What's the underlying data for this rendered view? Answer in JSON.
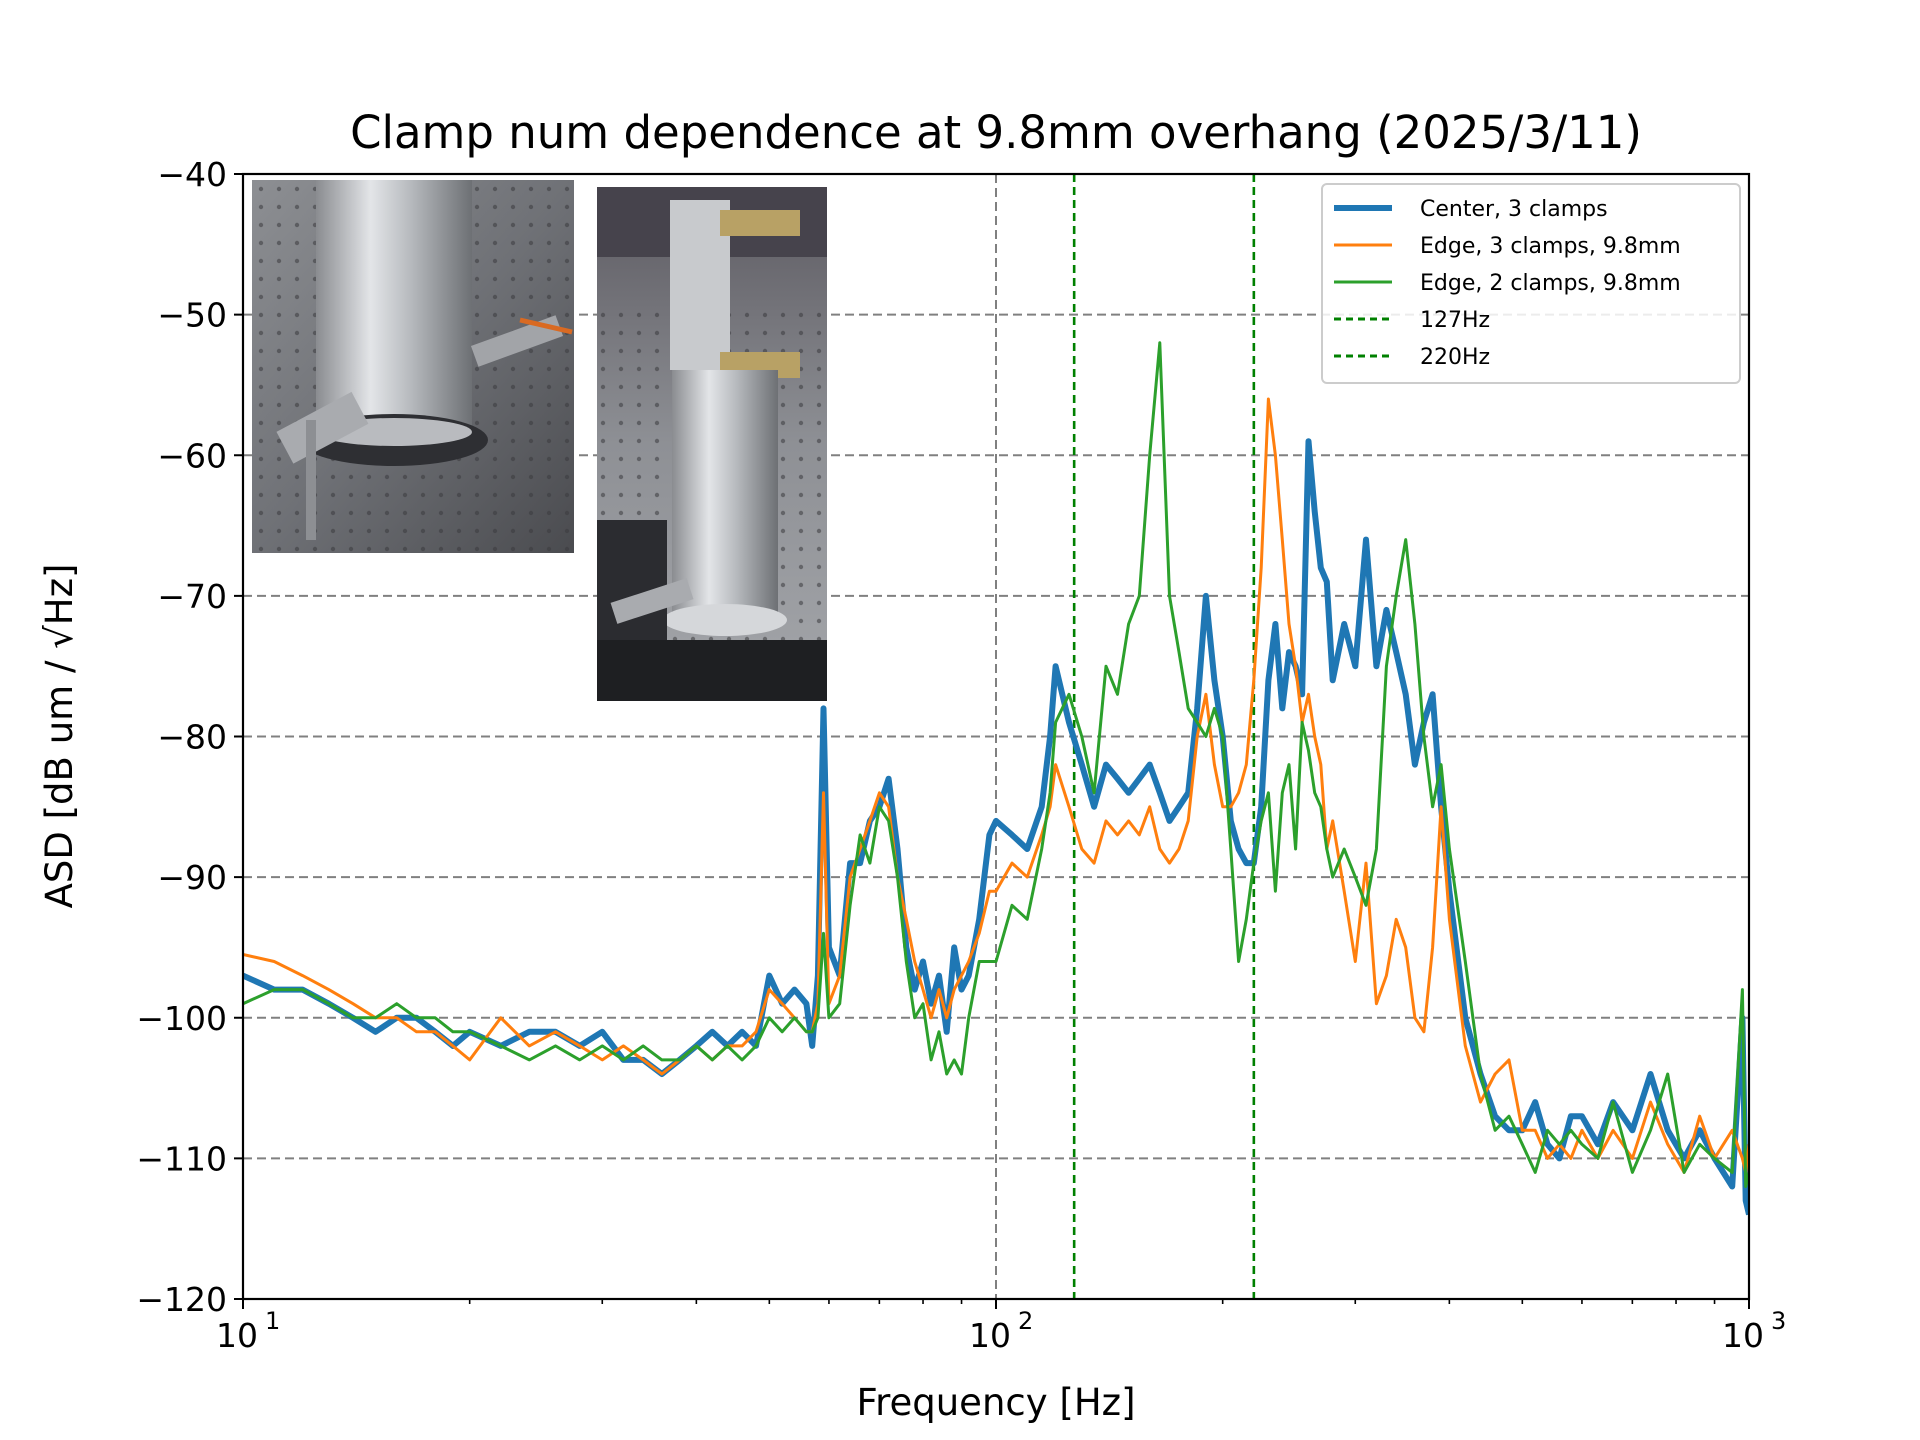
{
  "chart_data": {
    "type": "line",
    "title": "Clamp num dependence at 9.8mm overhang (2025/3/11)",
    "xlabel": "Frequency [Hz]",
    "ylabel": "ASD [dB um / √Hz]",
    "xscale": "log",
    "xlim": [
      10,
      1000
    ],
    "ylim": [
      -120,
      -40
    ],
    "grid": true,
    "legend_position": "top-right",
    "x_ticks": [
      {
        "value": 10,
        "base": "10",
        "exp": "1"
      },
      {
        "value": 100,
        "base": "10",
        "exp": "2"
      },
      {
        "value": 1000,
        "base": "10",
        "exp": "3"
      }
    ],
    "y_ticks": [
      {
        "value": -40,
        "label": "−40"
      },
      {
        "value": -50,
        "label": "−50"
      },
      {
        "value": -60,
        "label": "−60"
      },
      {
        "value": -70,
        "label": "−70"
      },
      {
        "value": -80,
        "label": "−80"
      },
      {
        "value": -90,
        "label": "−90"
      },
      {
        "value": -100,
        "label": "−100"
      },
      {
        "value": -110,
        "label": "−110"
      },
      {
        "value": -120,
        "label": "−120"
      }
    ],
    "series": [
      {
        "name": "Center, 3 clamps",
        "color": "#1f77b4",
        "x": [
          10,
          11,
          12,
          13,
          14,
          15,
          16,
          17,
          18,
          19,
          20,
          22,
          24,
          26,
          28,
          30,
          32,
          34,
          36,
          38,
          40,
          42,
          44,
          46,
          48,
          50,
          52,
          54,
          56,
          57,
          58,
          59,
          60,
          62,
          64,
          66,
          68,
          70,
          72,
          74,
          76,
          78,
          80,
          82,
          84,
          86,
          88,
          90,
          92,
          95,
          98,
          100,
          105,
          110,
          115,
          118,
          120,
          125,
          130,
          135,
          140,
          145,
          150,
          155,
          160,
          165,
          170,
          175,
          180,
          185,
          190,
          195,
          200,
          205,
          210,
          215,
          220,
          225,
          230,
          235,
          240,
          245,
          250,
          255,
          260,
          265,
          270,
          275,
          280,
          290,
          300,
          310,
          320,
          330,
          340,
          350,
          360,
          370,
          380,
          390,
          400,
          420,
          440,
          460,
          480,
          500,
          520,
          540,
          560,
          580,
          600,
          630,
          660,
          700,
          740,
          780,
          820,
          860,
          900,
          950,
          980,
          990,
          1000
        ],
        "y": [
          -97,
          -98,
          -98,
          -99,
          -100,
          -101,
          -100,
          -100,
          -101,
          -102,
          -101,
          -102,
          -101,
          -101,
          -102,
          -101,
          -103,
          -103,
          -104,
          -103,
          -102,
          -101,
          -102,
          -101,
          -102,
          -97,
          -99,
          -98,
          -99,
          -102,
          -97,
          -78,
          -95,
          -97,
          -89,
          -89,
          -86,
          -85,
          -83,
          -88,
          -95,
          -98,
          -96,
          -99,
          -97,
          -101,
          -95,
          -98,
          -97,
          -93,
          -87,
          -86,
          -87,
          -88,
          -85,
          -80,
          -75,
          -79,
          -82,
          -85,
          -82,
          -83,
          -84,
          -83,
          -82,
          -84,
          -86,
          -85,
          -84,
          -78,
          -70,
          -76,
          -80,
          -86,
          -88,
          -89,
          -89,
          -85,
          -76,
          -72,
          -78,
          -74,
          -75,
          -77,
          -59,
          -64,
          -68,
          -69,
          -76,
          -72,
          -75,
          -66,
          -75,
          -71,
          -74,
          -77,
          -82,
          -79,
          -77,
          -85,
          -91,
          -100,
          -104,
          -107,
          -108,
          -108,
          -106,
          -109,
          -110,
          -107,
          -107,
          -109,
          -106,
          -108,
          -104,
          -108,
          -110,
          -108,
          -110,
          -112,
          -100,
          -113,
          -114
        ]
      },
      {
        "name": "Edge, 3 clamps, 9.8mm",
        "color": "#ff7f0e",
        "x": [
          10,
          11,
          12,
          13,
          14,
          15,
          16,
          17,
          18,
          19,
          20,
          22,
          24,
          26,
          28,
          30,
          32,
          34,
          36,
          38,
          40,
          42,
          44,
          46,
          48,
          50,
          52,
          54,
          56,
          57,
          58,
          59,
          60,
          62,
          64,
          66,
          68,
          70,
          72,
          74,
          76,
          78,
          80,
          82,
          84,
          86,
          88,
          90,
          92,
          95,
          98,
          100,
          105,
          110,
          115,
          118,
          120,
          125,
          130,
          135,
          140,
          145,
          150,
          155,
          160,
          165,
          170,
          175,
          180,
          185,
          190,
          195,
          200,
          205,
          210,
          215,
          220,
          225,
          230,
          235,
          240,
          245,
          250,
          255,
          260,
          265,
          270,
          275,
          280,
          290,
          300,
          310,
          320,
          330,
          340,
          350,
          360,
          370,
          380,
          390,
          400,
          420,
          440,
          460,
          480,
          500,
          520,
          540,
          560,
          580,
          600,
          630,
          660,
          700,
          740,
          780,
          820,
          860,
          900,
          950,
          980,
          990,
          1000
        ],
        "y": [
          -95.5,
          -96,
          -97,
          -98,
          -99,
          -100,
          -100,
          -101,
          -101,
          -102,
          -103,
          -100,
          -102,
          -101,
          -102,
          -103,
          -102,
          -103,
          -104,
          -103,
          -102,
          -103,
          -102,
          -102,
          -101,
          -98,
          -99,
          -100,
          -101,
          -101,
          -99,
          -84,
          -99,
          -97,
          -90,
          -88,
          -86,
          -84,
          -85,
          -90,
          -93,
          -96,
          -98,
          -100,
          -98,
          -100,
          -98,
          -97,
          -96,
          -94,
          -91,
          -91,
          -89,
          -90,
          -87,
          -85,
          -82,
          -85,
          -88,
          -89,
          -86,
          -87,
          -86,
          -87,
          -85,
          -88,
          -89,
          -88,
          -86,
          -80,
          -77,
          -82,
          -85,
          -85,
          -84,
          -82,
          -76,
          -68,
          -56,
          -60,
          -66,
          -72,
          -75,
          -79,
          -77,
          -80,
          -82,
          -88,
          -86,
          -91,
          -96,
          -89,
          -99,
          -97,
          -93,
          -95,
          -100,
          -101,
          -95,
          -85,
          -93,
          -102,
          -106,
          -104,
          -103,
          -108,
          -108,
          -110,
          -109,
          -110,
          -108,
          -110,
          -108,
          -110,
          -106,
          -109,
          -111,
          -107,
          -110,
          -108,
          -110,
          -111,
          -109
        ]
      },
      {
        "name": "Edge, 2 clamps, 9.8mm",
        "color": "#2ca02c",
        "x": [
          10,
          11,
          12,
          13,
          14,
          15,
          16,
          17,
          18,
          19,
          20,
          22,
          24,
          26,
          28,
          30,
          32,
          34,
          36,
          38,
          40,
          42,
          44,
          46,
          48,
          50,
          52,
          54,
          56,
          57,
          58,
          59,
          60,
          62,
          64,
          66,
          68,
          70,
          72,
          74,
          76,
          78,
          80,
          82,
          84,
          86,
          88,
          90,
          92,
          95,
          98,
          100,
          105,
          110,
          115,
          118,
          120,
          125,
          130,
          135,
          140,
          145,
          150,
          155,
          160,
          165,
          170,
          175,
          180,
          185,
          190,
          195,
          200,
          205,
          210,
          215,
          220,
          225,
          230,
          235,
          240,
          245,
          250,
          255,
          260,
          265,
          270,
          275,
          280,
          290,
          300,
          310,
          320,
          330,
          340,
          350,
          360,
          370,
          380,
          390,
          400,
          420,
          440,
          460,
          480,
          500,
          520,
          540,
          560,
          580,
          600,
          630,
          660,
          700,
          740,
          780,
          820,
          860,
          900,
          950,
          980,
          990,
          1000
        ],
        "y": [
          -99,
          -98,
          -98,
          -99,
          -100,
          -100,
          -99,
          -100,
          -100,
          -101,
          -101,
          -102,
          -103,
          -102,
          -103,
          -102,
          -103,
          -102,
          -103,
          -103,
          -102,
          -103,
          -102,
          -103,
          -102,
          -100,
          -101,
          -100,
          -101,
          -101,
          -100,
          -94,
          -100,
          -99,
          -92,
          -87,
          -89,
          -85,
          -86,
          -90,
          -96,
          -100,
          -99,
          -103,
          -101,
          -104,
          -103,
          -104,
          -100,
          -96,
          -96,
          -96,
          -92,
          -93,
          -88,
          -84,
          -79,
          -77,
          -80,
          -84,
          -75,
          -77,
          -72,
          -70,
          -60,
          -52,
          -70,
          -74,
          -78,
          -79,
          -80,
          -78,
          -80,
          -88,
          -96,
          -93,
          -89,
          -86,
          -84,
          -91,
          -84,
          -82,
          -88,
          -79,
          -81,
          -84,
          -85,
          -88,
          -90,
          -88,
          -90,
          -92,
          -88,
          -75,
          -70,
          -66,
          -72,
          -80,
          -85,
          -82,
          -88,
          -96,
          -104,
          -108,
          -107,
          -109,
          -111,
          -108,
          -109,
          -108,
          -109,
          -110,
          -106,
          -111,
          -108,
          -104,
          -111,
          -109,
          -110,
          -111,
          -98,
          -112,
          -111
        ]
      },
      {
        "name": "127Hz",
        "color": "#008000",
        "vline": 127
      },
      {
        "name": "220Hz",
        "color": "#008000",
        "vline": 220
      }
    ],
    "reference_vlines_gray": [
      100
    ]
  }
}
